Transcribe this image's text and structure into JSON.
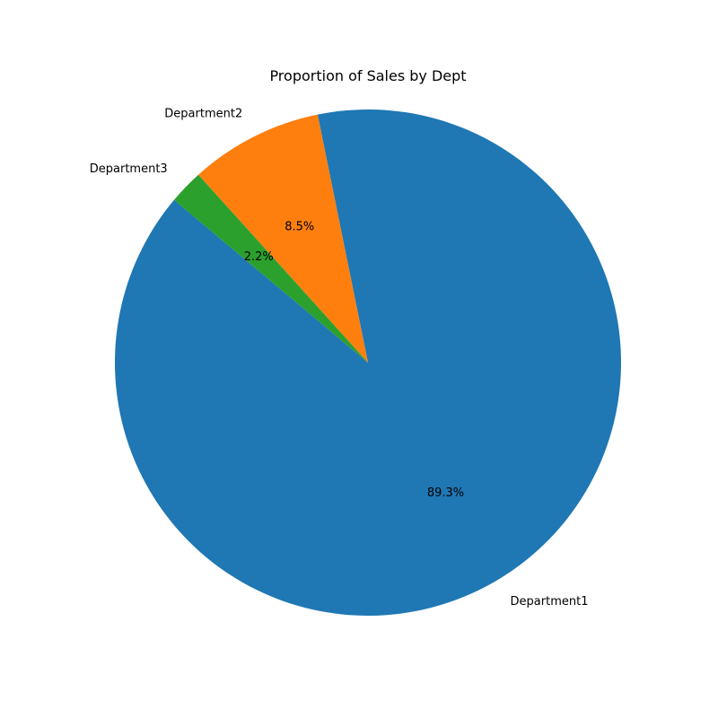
{
  "chart_data": {
    "type": "pie",
    "title": "Proportion of Sales by Dept",
    "categories": [
      "Department1",
      "Department2",
      "Department3"
    ],
    "values": [
      89.3,
      8.5,
      2.2
    ],
    "percent_labels": [
      "89.3%",
      "8.5%",
      "2.2%"
    ],
    "colors": [
      "#1f77b4",
      "#ff7f0e",
      "#2ca02c"
    ],
    "start_angle_deg": 140,
    "direction": "counterclockwise",
    "legend": "none"
  }
}
